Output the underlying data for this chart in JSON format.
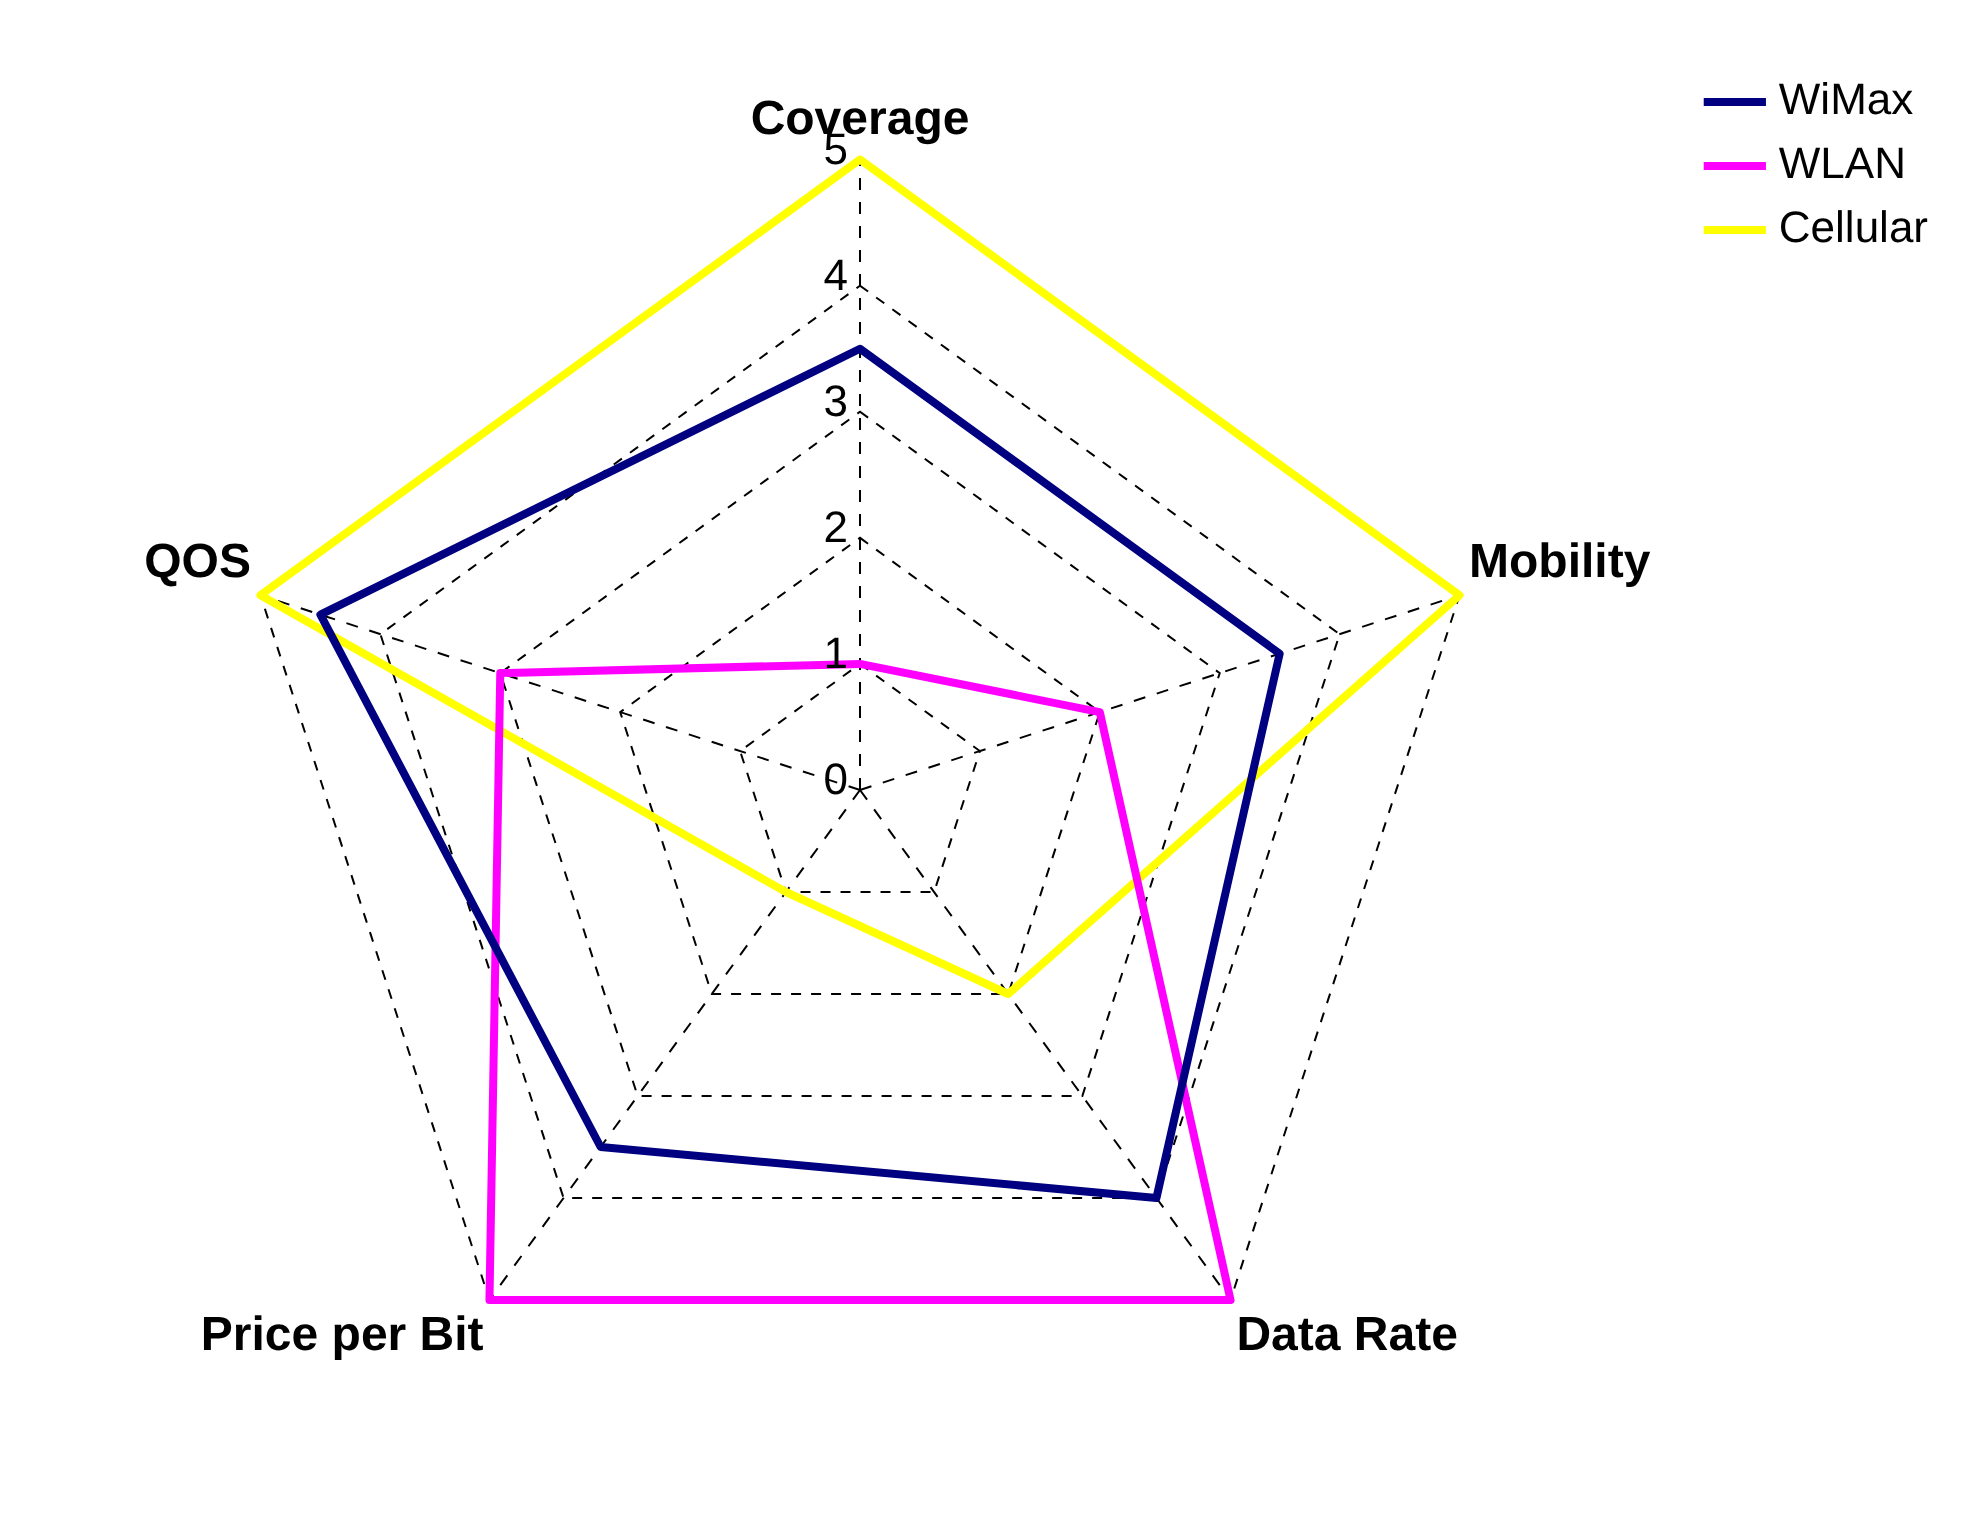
{
  "chart_data": {
    "type": "radar",
    "categories": [
      "Coverage",
      "Mobility",
      "Data Rate",
      "Price per Bit",
      "QOS"
    ],
    "series": [
      {
        "name": "WiMax",
        "color": "#000080",
        "values": [
          3.5,
          3.5,
          4,
          3.5,
          4.5
        ]
      },
      {
        "name": "WLAN",
        "color": "#ff00ff",
        "values": [
          1,
          2,
          5,
          5,
          3
        ]
      },
      {
        "name": "Cellular",
        "color": "#ffff00",
        "values": [
          5,
          5,
          2,
          1,
          5
        ]
      }
    ],
    "ylim": [
      0,
      5
    ],
    "yticks": [
      0,
      1,
      2,
      3,
      4,
      5
    ],
    "grid": true,
    "legend": "top right",
    "line_style": "solid",
    "marker": "none"
  }
}
